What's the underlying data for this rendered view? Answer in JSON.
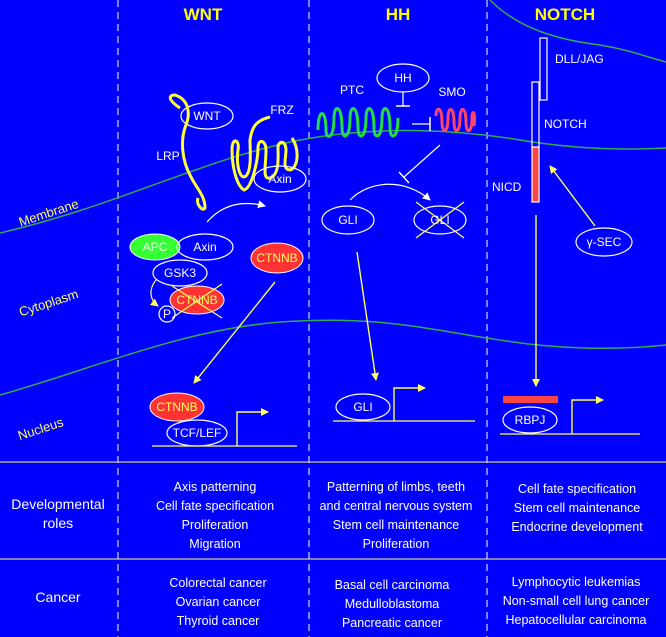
{
  "headers": {
    "wnt": "WNT",
    "hh": "HH",
    "notch": "NOTCH"
  },
  "compartments": {
    "membrane": "Membrane",
    "cytoplasm": "Cytoplasm",
    "nucleus": "Nucleus"
  },
  "wnt": {
    "wnt": "WNT",
    "frz": "FRZ",
    "lrp": "LRP",
    "axin_membrane": "Axin",
    "apc": "APC",
    "axin_cyto": "Axin",
    "gsk3": "GSK3",
    "ctnnb_degraded": "CTNNB",
    "p": "P",
    "ctnnb_free": "CTNNB",
    "ctnnb_nucleus": "CTNNB",
    "tcf_lef": "TCF/LEF"
  },
  "hh": {
    "hh": "HH",
    "ptc": "PTC",
    "smo": "SMO",
    "gli_active": "GLI",
    "gli_inactive": "GLI",
    "gli_nucleus": "GLI"
  },
  "notch": {
    "dll_jag": "DLL/JAG",
    "notch": "NOTCH",
    "nicd": "NICD",
    "gamma_sec": "γ-SEC",
    "rbpj": "RBPJ"
  },
  "rows": {
    "developmental_label": [
      "Developmental",
      "roles"
    ],
    "cancer_label": "Cancer"
  },
  "developmental_roles": {
    "wnt": [
      "Axis patterning",
      "Cell fate specification",
      "Proliferation",
      "Migration"
    ],
    "hh": [
      "Patterning of limbs, teeth",
      "and central nervous system",
      "Stem cell maintenance",
      "Proliferation"
    ],
    "notch": [
      "Cell fate specification",
      "Stem cell maintenance",
      "Endocrine development"
    ]
  },
  "cancer": {
    "wnt": [
      "Colorectal cancer",
      "Ovarian cancer",
      "Thyroid cancer"
    ],
    "hh": [
      "Basal cell carcinoma",
      "Medulloblastoma",
      "Pancreatic cancer"
    ],
    "notch": [
      "Lymphocytic leukemias",
      "Non-small cell lung cancer",
      "Hepatocellular carcinoma"
    ]
  },
  "colors": {
    "background": "#0000ff",
    "header": "#ffff00",
    "membrane": "#33aa55",
    "apc": "#33ff33",
    "ctnnb": "#ff3333",
    "ptc": "#22dd44",
    "smo": "#ff4466",
    "nicd": "#ff4444"
  }
}
